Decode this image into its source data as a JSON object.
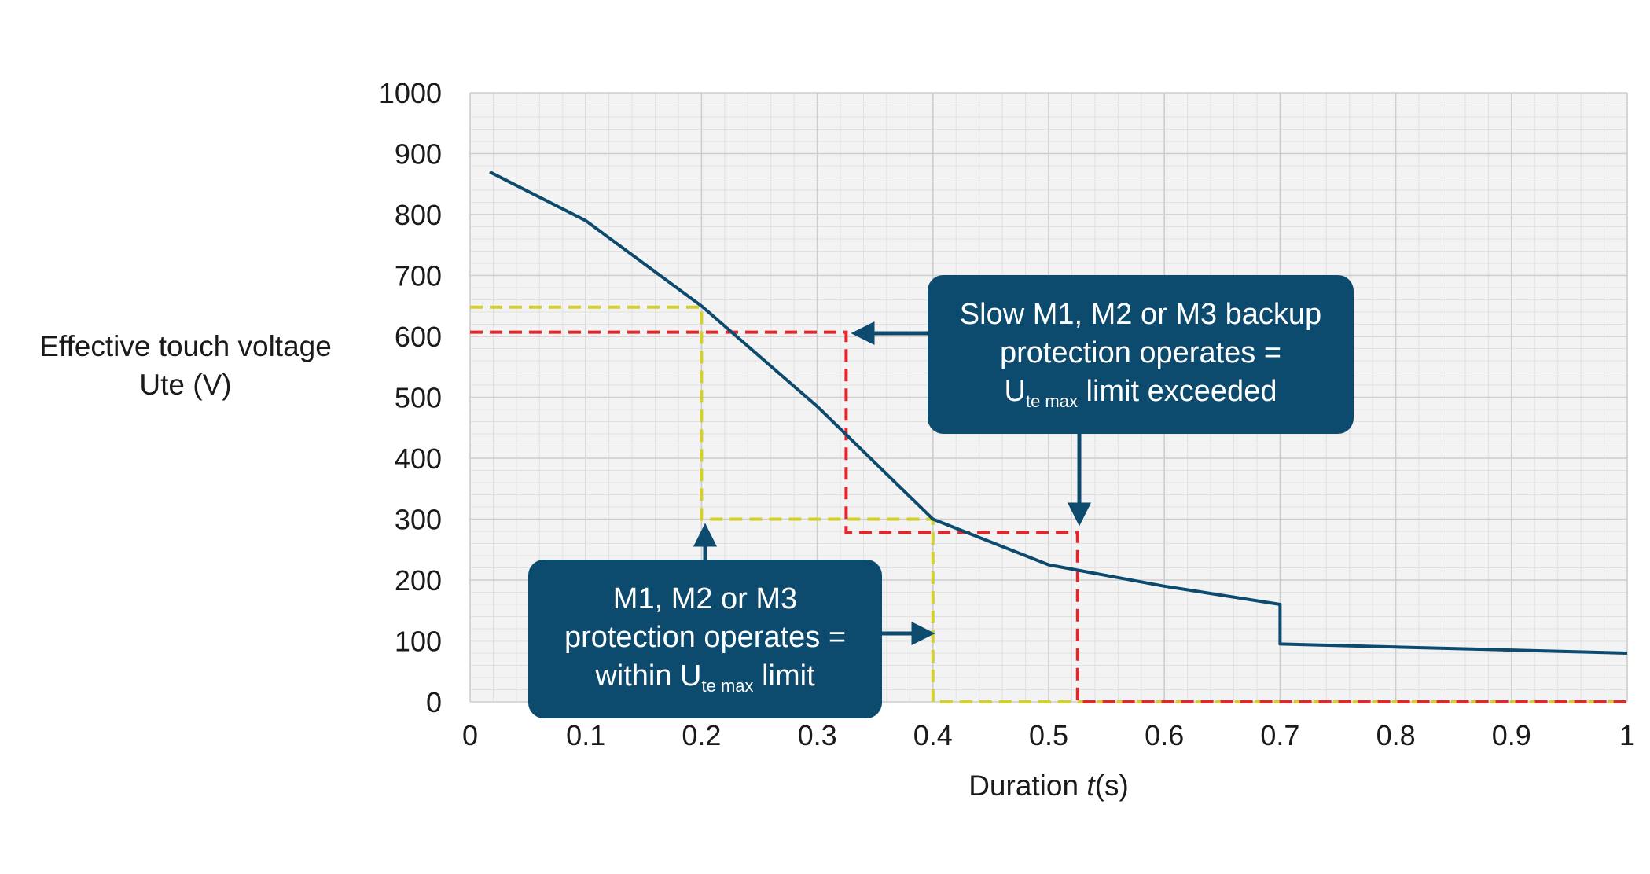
{
  "chart_data": {
    "type": "line",
    "xlabel_prefix": "Duration ",
    "xlabel_var": "t",
    "xlabel_suffix": "(s)",
    "ylabel_lines": [
      "Effective touch voltage",
      "Ute (V)"
    ],
    "xlim": [
      0,
      1
    ],
    "ylim": [
      0,
      1000
    ],
    "x_ticks": [
      "0",
      "0.1",
      "0.2",
      "0.3",
      "0.4",
      "0.5",
      "0.6",
      "0.7",
      "0.8",
      "0.9",
      "1"
    ],
    "y_ticks": [
      "0",
      "100",
      "200",
      "300",
      "400",
      "500",
      "600",
      "700",
      "800",
      "900",
      "1000"
    ],
    "grid": true,
    "series": [
      {
        "color": "#0c4a6e",
        "x": [
          0.017,
          0.1,
          0.2,
          0.3,
          0.4,
          0.5,
          0.6,
          0.7,
          0.7,
          0.8,
          0.9,
          1.0
        ],
        "y": [
          870,
          790,
          650,
          485,
          300,
          225,
          190,
          160,
          95,
          90,
          85,
          80
        ]
      }
    ],
    "guides": [
      {
        "color": "#d4cf2a",
        "points": [
          [
            0,
            648
          ],
          [
            0.2,
            648
          ],
          [
            0.2,
            300
          ],
          [
            0.4,
            300
          ],
          [
            0.4,
            0
          ],
          [
            1,
            0
          ]
        ]
      },
      {
        "color": "#e3262b",
        "points": [
          [
            0,
            607
          ],
          [
            0.325,
            607
          ],
          [
            0.325,
            278
          ],
          [
            0.525,
            278
          ],
          [
            0.525,
            0
          ],
          [
            1,
            0
          ]
        ]
      }
    ],
    "annotations": [
      {
        "lines": [
          "Slow M1, M2 or M3 backup",
          "protection operates ="
        ],
        "last_main": "U",
        "last_sub": "te max",
        "last_rest": " limit exceeded"
      },
      {
        "lines": [
          "M1, M2 or M3",
          "protection operates ="
        ],
        "last_pre": "within U",
        "last_sub": "te max",
        "last_rest": " limit"
      }
    ]
  }
}
